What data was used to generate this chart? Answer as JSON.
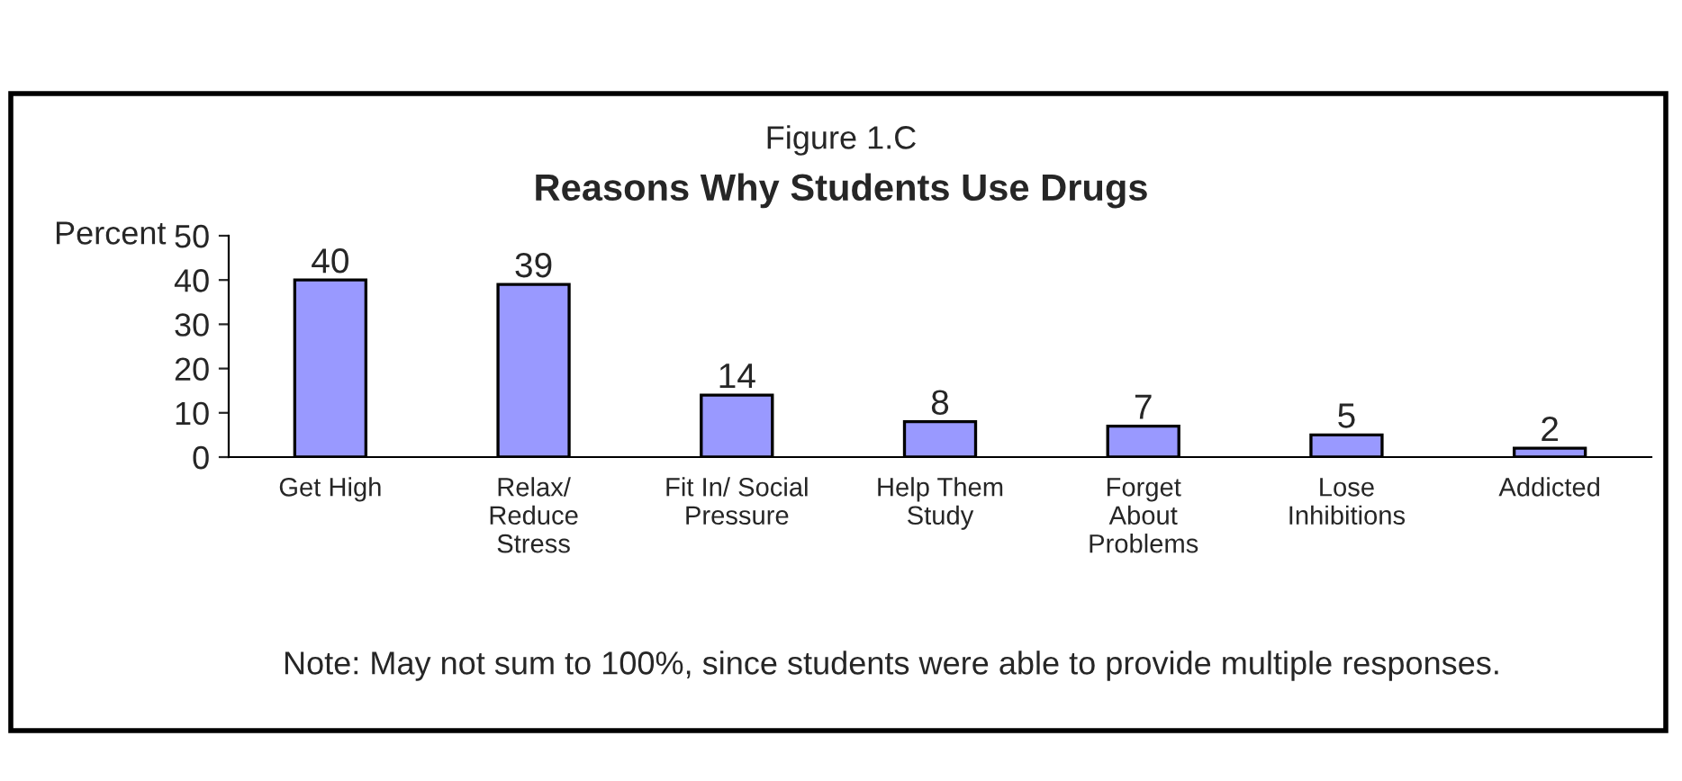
{
  "chart_data": {
    "type": "bar",
    "subtitle": "Figure 1.C",
    "title": "Reasons Why Students Use Drugs",
    "ylabel": "Percent",
    "categories": [
      "Get High",
      "Relax/\nReduce\nStress",
      "Fit In/ Social\nPressure",
      "Help Them\nStudy",
      "Forget\nAbout\nProblems",
      "Lose\nInhibitions",
      "Addicted"
    ],
    "values": [
      40,
      39,
      14,
      8,
      7,
      5,
      2
    ],
    "color": "#9999ff",
    "ylim": [
      0,
      50
    ],
    "yticks": [
      0,
      10,
      20,
      30,
      40,
      50
    ],
    "grid": false,
    "data_labels": true,
    "annotations": [
      "Note: May not sum to 100%, since students were able to provide multiple responses."
    ]
  }
}
